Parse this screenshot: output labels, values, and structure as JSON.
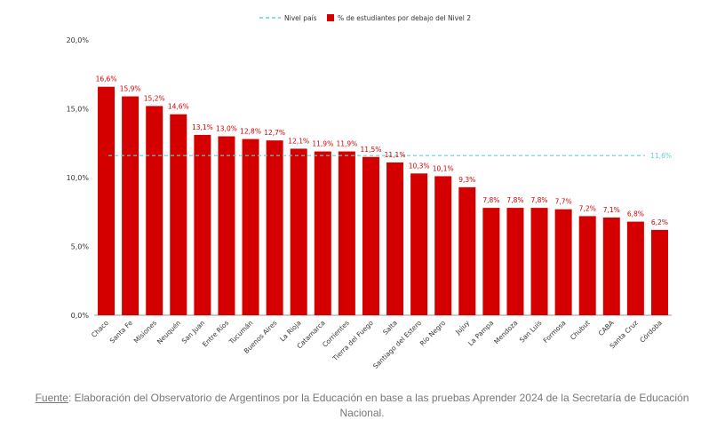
{
  "chart_data": {
    "type": "bar",
    "categories": [
      "Chaco",
      "Santa Fe",
      "Misiones",
      "Neuquén",
      "San Juan",
      "Entre Ríos",
      "Tucumán",
      "Buenos Aires",
      "La Rioja",
      "Catamarca",
      "Corrientes",
      "Tierra del Fuego",
      "Salta",
      "Santiago del Estero",
      "Río Negro",
      "Jujuy",
      "La Pampa",
      "Mendoza",
      "San Luis",
      "Formosa",
      "Chubut",
      "CABA",
      "Santa Cruz",
      "Córdoba"
    ],
    "series": [
      {
        "name": "% de estudiantes por debajo del Nivel 2",
        "color": "#d40000",
        "values": [
          16.6,
          15.9,
          15.2,
          14.6,
          13.1,
          13.0,
          12.8,
          12.7,
          12.1,
          11.9,
          11.9,
          11.5,
          11.1,
          10.3,
          10.1,
          9.3,
          7.8,
          7.8,
          7.8,
          7.7,
          7.2,
          7.1,
          6.8,
          6.2
        ],
        "labels": [
          "16,6%",
          "15,9%",
          "15,2%",
          "14,6%",
          "13,1%",
          "13,0%",
          "12,8%",
          "12,7%",
          "12,1%",
          "11,9%",
          "11,9%",
          "11,5%",
          "11,1%",
          "10,3%",
          "10,1%",
          "9,3%",
          "7,8%",
          "7,8%",
          "7,8%",
          "7,7%",
          "7,2%",
          "7,1%",
          "6,8%",
          "6,2%"
        ]
      }
    ],
    "reference_line": {
      "name": "Nivel país",
      "value": 11.6,
      "label": "11,6%",
      "color": "#5fd3d3",
      "style": "dashed"
    },
    "ylim": [
      0,
      20
    ],
    "yticks": [
      0,
      5,
      10,
      15,
      20
    ],
    "ytick_labels": [
      "0,0%",
      "5,0%",
      "10,0%",
      "15,0%",
      "20,0%"
    ],
    "legend": {
      "position": "top-center",
      "entries": [
        "Nivel país",
        "% de estudiantes por debajo del Nivel 2"
      ]
    },
    "grid": false
  },
  "source": {
    "prefix": "Fuente",
    "text": ": Elaboración del Observatorio de Argentinos por la Educación en base a las pruebas Aprender 2024 de la Secretaría de Educación Nacional."
  }
}
